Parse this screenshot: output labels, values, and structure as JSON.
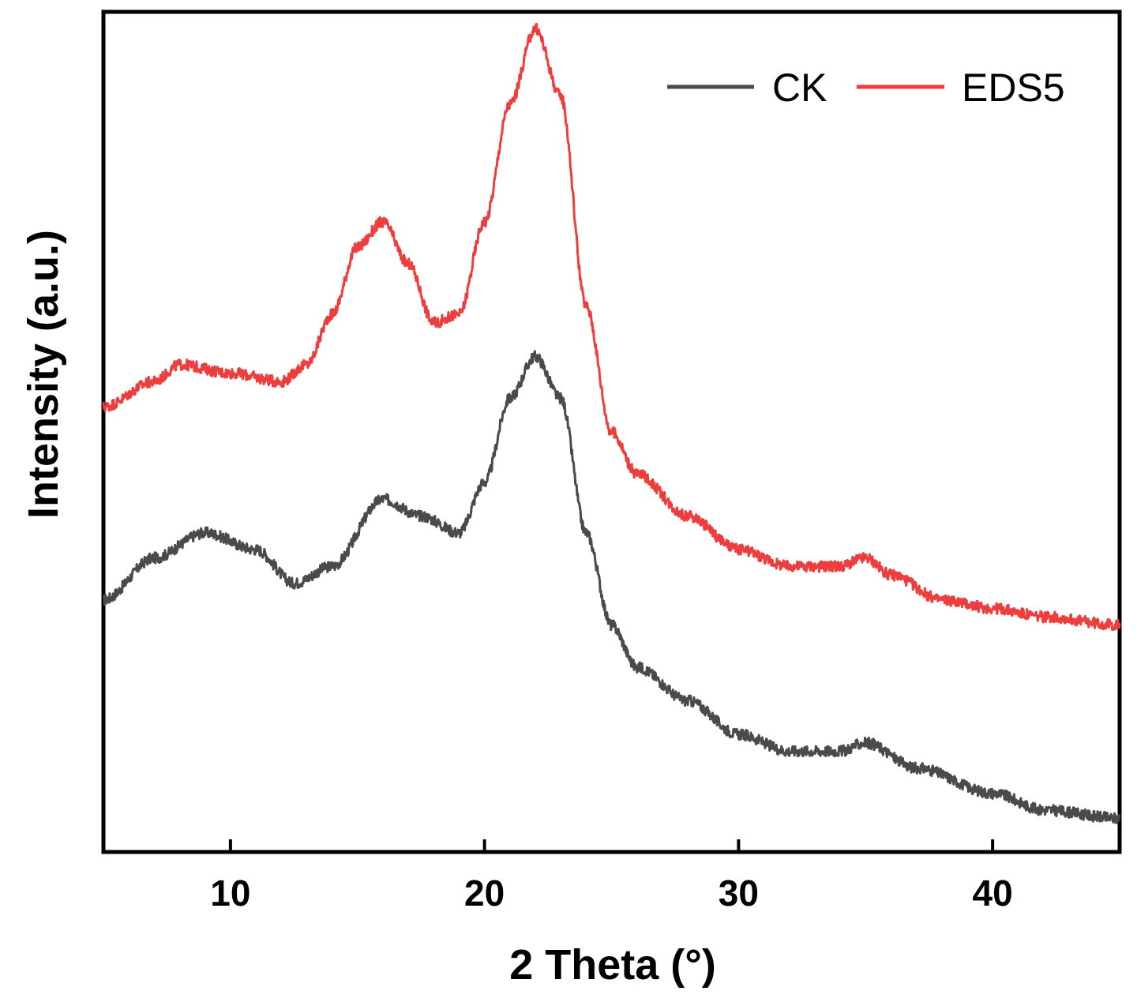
{
  "chart_data": {
    "type": "line",
    "xlabel": "2 Theta (°)",
    "ylabel": "Intensity (a.u.)",
    "xlim": [
      5,
      45
    ],
    "ylim": [
      0,
      100
    ],
    "xticks": [
      10,
      20,
      30,
      40
    ],
    "yticks_shown": false,
    "grid": false,
    "legend_position": "top-right",
    "series": [
      {
        "name": "CK",
        "color": "#4a4a4a",
        "x": [
          5,
          7,
          9,
          11,
          12.5,
          14,
          16,
          17.5,
          19,
          20,
          21,
          22,
          23,
          24,
          25,
          26,
          28,
          30,
          32,
          34,
          35,
          37,
          40,
          42,
          45
        ],
        "y": [
          30,
          35,
          38,
          36,
          32,
          34,
          42,
          40,
          38,
          44,
          54,
          59,
          54,
          38,
          27,
          22,
          18,
          14,
          12,
          12,
          13,
          10,
          7,
          5,
          4
        ]
      },
      {
        "name": "EDS5",
        "color": "#ee3d3d",
        "x": [
          5,
          7,
          8,
          10,
          12,
          13,
          14,
          15,
          16,
          17,
          18,
          19,
          20,
          21,
          22,
          23,
          24,
          25,
          26,
          28,
          30,
          32,
          34,
          35,
          36,
          38,
          40,
          42,
          45
        ],
        "y": [
          53,
          56,
          58,
          57,
          56,
          58,
          64,
          72,
          75,
          70,
          63,
          64,
          75,
          89,
          98,
          90,
          65,
          50,
          45,
          40,
          36,
          34,
          34,
          35,
          33,
          30,
          29,
          28,
          27
        ]
      }
    ]
  }
}
